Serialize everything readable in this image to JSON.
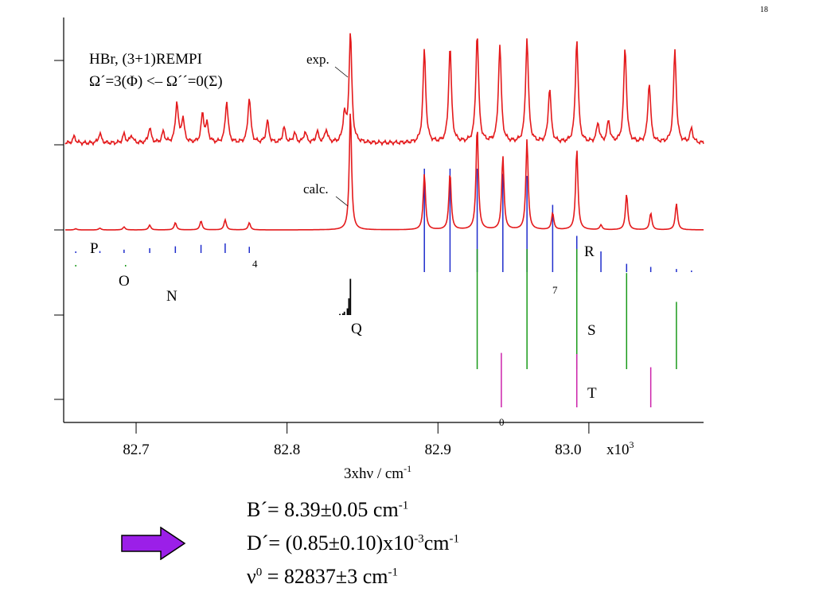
{
  "page_number": "18",
  "chart_data": {
    "type": "line",
    "annotation": {
      "line1": "HBr, (3+1)REMPI",
      "line2": "Ω´=3(Φ) <–  Ω´´=0(Σ)"
    },
    "xlabel": "3xhν / cm",
    "xlabel_sup": "-1",
    "x_multiplier_label": "x10",
    "x_multiplier_sup": "3",
    "xlim": [
      82.652,
      83.076
    ],
    "x_ticks": [
      82.7,
      82.8,
      82.9,
      83.0
    ],
    "x_tick_labels": [
      "82.7",
      "82.8",
      "82.9",
      "83.0"
    ],
    "series": [
      {
        "name": "exp.",
        "color": "#e41a1c",
        "baseline_rel": 0.0,
        "noise": true,
        "peaks": [
          [
            82.659,
            0.06
          ],
          [
            82.676,
            0.09
          ],
          [
            82.692,
            0.08
          ],
          [
            82.697,
            0.07
          ],
          [
            82.709,
            0.14
          ],
          [
            82.718,
            0.1
          ],
          [
            82.727,
            0.37
          ],
          [
            82.731,
            0.22
          ],
          [
            82.744,
            0.26
          ],
          [
            82.747,
            0.16
          ],
          [
            82.76,
            0.38
          ],
          [
            82.775,
            0.42
          ],
          [
            82.787,
            0.2
          ],
          [
            82.798,
            0.14
          ],
          [
            82.805,
            0.09
          ],
          [
            82.812,
            0.1
          ],
          [
            82.82,
            0.1
          ],
          [
            82.826,
            0.12
          ],
          [
            82.838,
            0.25
          ],
          [
            82.842,
            1.0
          ],
          [
            82.891,
            0.85
          ],
          [
            82.908,
            0.88
          ],
          [
            82.926,
            1.0
          ],
          [
            82.941,
            0.9
          ],
          [
            82.959,
            0.96
          ],
          [
            82.974,
            0.5
          ],
          [
            82.992,
            0.95
          ],
          [
            83.006,
            0.18
          ],
          [
            83.013,
            0.2
          ],
          [
            83.024,
            0.87
          ],
          [
            83.04,
            0.55
          ],
          [
            83.057,
            0.85
          ],
          [
            83.068,
            0.13
          ]
        ]
      },
      {
        "name": "calc.",
        "color": "#e41a1c",
        "baseline_rel": 0.0,
        "noise": false,
        "peaks": [
          [
            82.66,
            0.01
          ],
          [
            82.676,
            0.015
          ],
          [
            82.692,
            0.025
          ],
          [
            82.709,
            0.04
          ],
          [
            82.726,
            0.06
          ],
          [
            82.743,
            0.075
          ],
          [
            82.759,
            0.085
          ],
          [
            82.775,
            0.06
          ],
          [
            82.842,
            1.0
          ],
          [
            82.891,
            0.47
          ],
          [
            82.908,
            0.48
          ],
          [
            82.926,
            0.87
          ],
          [
            82.943,
            0.62
          ],
          [
            82.959,
            0.76
          ],
          [
            82.976,
            0.14
          ],
          [
            82.992,
            0.68
          ],
          [
            83.008,
            0.04
          ],
          [
            83.025,
            0.3
          ],
          [
            83.041,
            0.14
          ],
          [
            83.058,
            0.22
          ]
        ]
      }
    ],
    "branches": [
      {
        "name": "P",
        "color": "#1f2dcc",
        "ticks": [
          [
            82.66,
            0.02
          ],
          [
            82.676,
            0.04
          ],
          [
            82.692,
            0.07
          ],
          [
            82.709,
            0.1
          ],
          [
            82.726,
            0.14
          ],
          [
            82.743,
            0.17
          ],
          [
            82.759,
            0.2
          ],
          [
            82.775,
            0.13
          ]
        ],
        "number_label": "4"
      },
      {
        "name": "O",
        "color": "#1a9a1a",
        "ticks": [
          [
            82.66,
            0.03
          ],
          [
            82.693,
            0.015
          ]
        ]
      },
      {
        "name": "N",
        "color": "#000000",
        "ticks": []
      },
      {
        "name": "Q",
        "color": "#000000",
        "ticks": [
          [
            82.835,
            0.02
          ],
          [
            82.837,
            0.03
          ],
          [
            82.838,
            0.06
          ],
          [
            82.84,
            0.12
          ],
          [
            82.841,
            0.3
          ],
          [
            82.842,
            0.65
          ]
        ]
      },
      {
        "name": "R",
        "color": "#1f2dcc",
        "ticks": [
          [
            82.891,
            1.0
          ],
          [
            82.908,
            1.0
          ],
          [
            82.926,
            1.0
          ],
          [
            82.943,
            0.95
          ],
          [
            82.959,
            0.93
          ],
          [
            82.976,
            0.65
          ],
          [
            82.992,
            0.35
          ],
          [
            83.008,
            0.2
          ],
          [
            83.025,
            0.08
          ],
          [
            83.041,
            0.05
          ],
          [
            83.058,
            0.03
          ],
          [
            83.068,
            0.015
          ]
        ],
        "number_label": "7"
      },
      {
        "name": "S",
        "color": "#1a9a1a",
        "ticks": [
          [
            82.926,
            1.0
          ],
          [
            82.959,
            1.0
          ],
          [
            82.992,
            1.0
          ],
          [
            83.025,
            0.8
          ],
          [
            83.058,
            0.56
          ]
        ]
      },
      {
        "name": "T",
        "color": "#cc22aa",
        "ticks": [
          [
            82.942,
            0.95
          ],
          [
            82.992,
            0.93
          ],
          [
            83.041,
            0.7
          ]
        ],
        "number_label": "0"
      }
    ],
    "curve_labels": {
      "exp": "exp.",
      "calc": "calc."
    }
  },
  "results": {
    "b_prefix": "B´= 8.39±0.05 cm",
    "b_sup": "-1",
    "d_prefix": "D´= (0.85±0.10)x10",
    "d_sup1": "-3",
    "d_mid": "cm",
    "d_sup2": "-1",
    "nu_prefix": "ν",
    "nu_sup": "0",
    "nu_suffix": " = 82837±3 cm",
    "nu_sup2": "-1"
  },
  "arrow_color": "#9b1fe8"
}
